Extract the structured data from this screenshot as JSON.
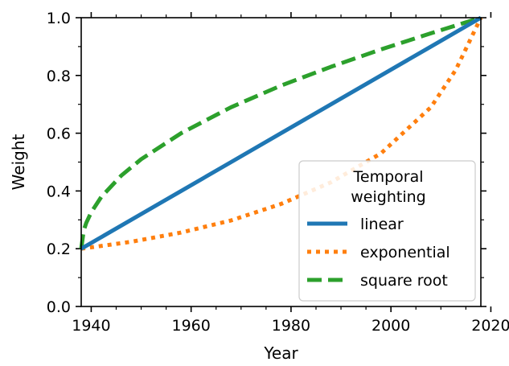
{
  "chart_data": {
    "type": "line",
    "xlabel": "Year",
    "ylabel": "Weight",
    "xlim": [
      1938,
      2018
    ],
    "ylim": [
      0.0,
      1.0
    ],
    "x_ticks": [
      1940,
      1960,
      1980,
      2000,
      2020
    ],
    "x_tick_labels": [
      "1940",
      "1960",
      "1980",
      "2000",
      "2020"
    ],
    "y_ticks": [
      0.0,
      0.2,
      0.4,
      0.6,
      0.8,
      1.0
    ],
    "y_tick_labels": [
      "0.0",
      "0.2",
      "0.4",
      "0.6",
      "0.8",
      "1.0"
    ],
    "grid": false,
    "legend": {
      "title_lines": [
        "Temporal",
        "weighting"
      ],
      "placement": "lower-right"
    },
    "series": [
      {
        "name": "linear",
        "color": "#1f77b4",
        "style": "solid",
        "x": [
          1938,
          1948,
          1958,
          1968,
          1978,
          1988,
          1998,
          2008,
          2018
        ],
        "y": [
          0.2,
          0.3,
          0.4,
          0.5,
          0.6,
          0.7,
          0.8,
          0.9,
          1.0
        ]
      },
      {
        "name": "exponential",
        "color": "#ff7f0e",
        "style": "dotted",
        "x": [
          1938,
          1948,
          1958,
          1968,
          1978,
          1988,
          1998,
          2003,
          2008,
          2013,
          2018
        ],
        "y": [
          0.2,
          0.224,
          0.256,
          0.298,
          0.355,
          0.43,
          0.53,
          0.61,
          0.69,
          0.82,
          1.0
        ]
      },
      {
        "name": "square root",
        "color": "#2ca02c",
        "style": "dashed",
        "x": [
          1938,
          1938.5,
          1939,
          1940,
          1942,
          1946,
          1950,
          1958,
          1968,
          1978,
          1988,
          1998,
          2008,
          2018
        ],
        "y": [
          0.2,
          0.263,
          0.289,
          0.326,
          0.379,
          0.453,
          0.51,
          0.6,
          0.69,
          0.765,
          0.83,
          0.89,
          0.946,
          1.0
        ]
      }
    ]
  }
}
